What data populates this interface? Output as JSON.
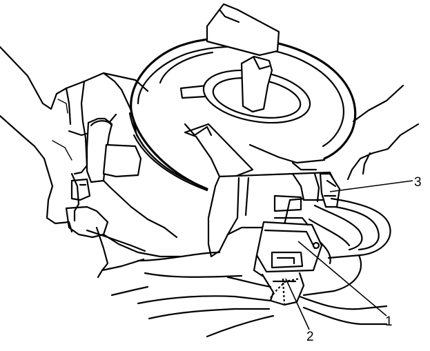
{
  "diagram": {
    "callouts": [
      {
        "id": "1",
        "label": "1"
      },
      {
        "id": "2",
        "label": "2"
      },
      {
        "id": "3",
        "label": "3"
      }
    ]
  }
}
